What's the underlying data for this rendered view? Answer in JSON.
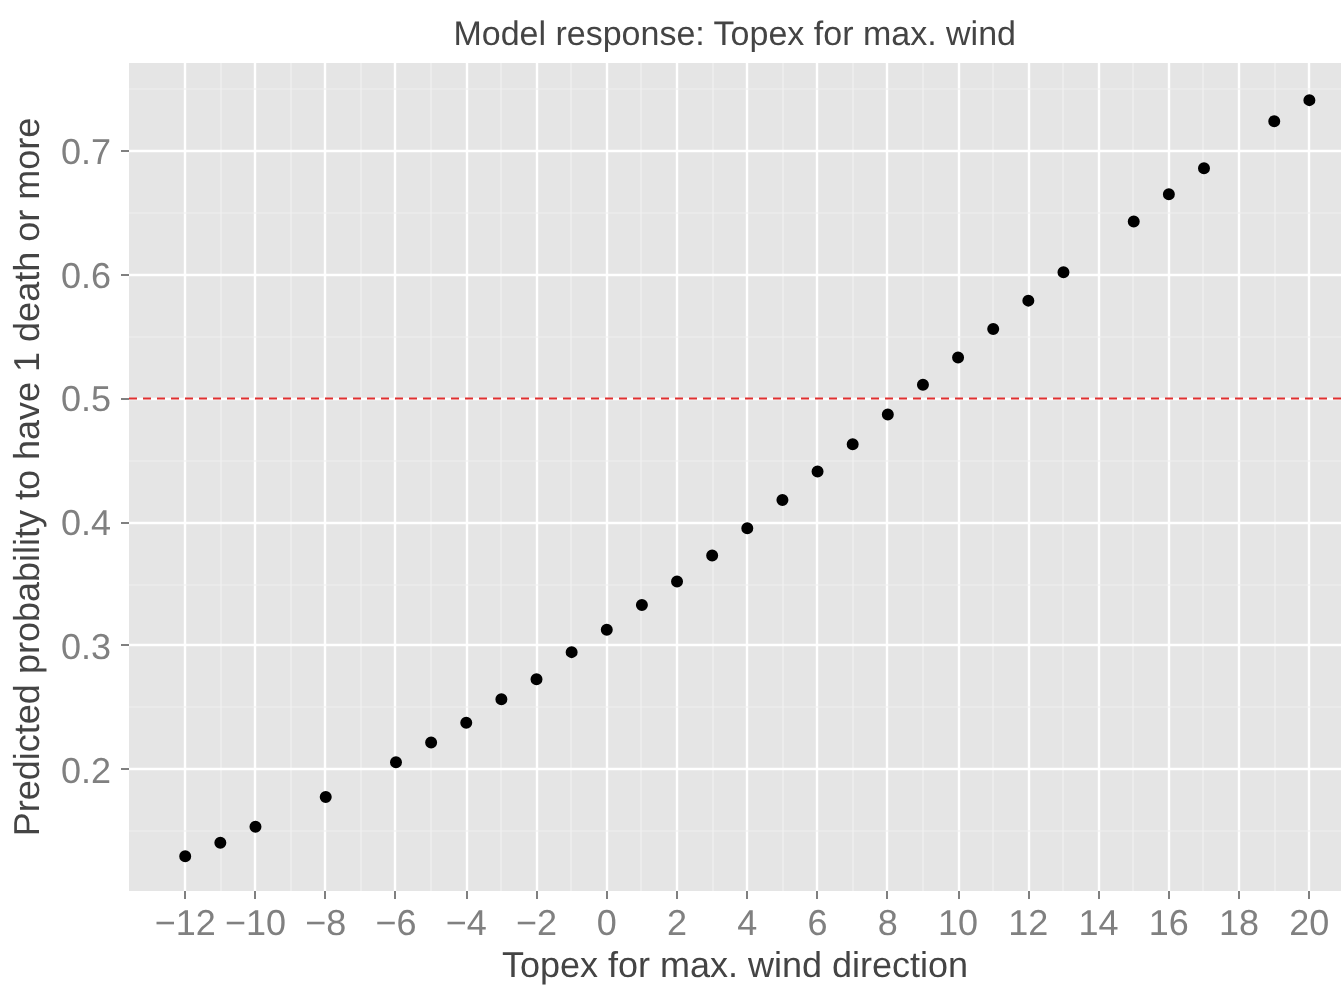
{
  "chart_data": {
    "type": "scatter",
    "title": "Model response: Topex for max. wind",
    "xlabel": "Topex for max. wind direction",
    "ylabel": "Predicted probability to have 1 death or more",
    "x": [
      -12,
      -11,
      -10,
      -8,
      -6,
      -5,
      -4,
      -3,
      -2,
      -1,
      0,
      1,
      2,
      3,
      4,
      5,
      6,
      7,
      8,
      9,
      10,
      11,
      12,
      13,
      15,
      16,
      17,
      19,
      20
    ],
    "values": [
      0.13,
      0.141,
      0.154,
      0.178,
      0.206,
      0.222,
      0.238,
      0.257,
      0.273,
      0.295,
      0.313,
      0.333,
      0.352,
      0.373,
      0.395,
      0.418,
      0.441,
      0.463,
      0.487,
      0.511,
      0.533,
      0.556,
      0.579,
      0.602,
      0.643,
      0.665,
      0.686,
      0.724,
      0.741
    ],
    "color": "#000000",
    "marker": "circle",
    "xlim": [
      -13.6,
      20.9
    ],
    "ylim": [
      0.102,
      0.771
    ],
    "xticks": [
      -12,
      -10,
      -8,
      -6,
      -4,
      -2,
      0,
      2,
      4,
      6,
      8,
      10,
      12,
      14,
      16,
      18,
      20
    ],
    "yticks": [
      0.2,
      0.3,
      0.4,
      0.5,
      0.6,
      0.7
    ],
    "grid": true,
    "ref_lines": [
      {
        "axis": "y",
        "value": 0.5,
        "color": "#e03030",
        "line_style": "dashed"
      }
    ]
  }
}
